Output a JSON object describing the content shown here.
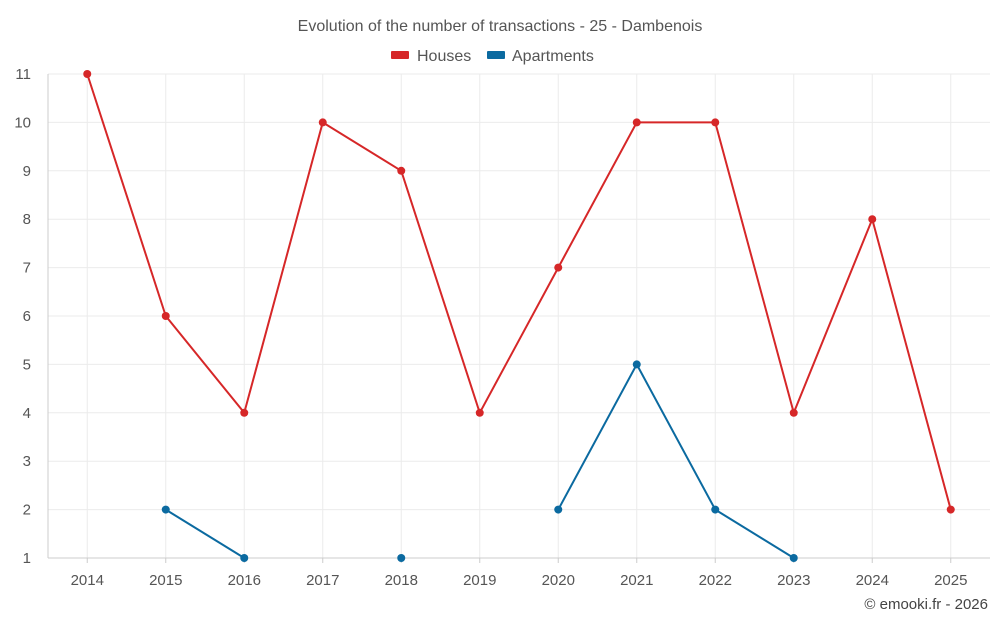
{
  "chart_data": {
    "type": "line",
    "title": "Evolution of the number of transactions - 25 - Dambenois",
    "xlabel": "",
    "ylabel": "",
    "categories": [
      "2014",
      "2015",
      "2016",
      "2017",
      "2018",
      "2019",
      "2020",
      "2021",
      "2022",
      "2023",
      "2024",
      "2025"
    ],
    "ylim": [
      1,
      11
    ],
    "yticks": [
      1,
      2,
      3,
      4,
      5,
      6,
      7,
      8,
      9,
      10,
      11
    ],
    "grid": true,
    "legend_position": "top-center",
    "series": [
      {
        "name": "Houses",
        "color": "#d62728",
        "values": [
          11,
          6,
          4,
          10,
          9,
          4,
          7,
          10,
          10,
          4,
          8,
          2
        ]
      },
      {
        "name": "Apartments",
        "color": "#0b6aa0",
        "values": [
          null,
          2,
          1,
          null,
          1,
          null,
          2,
          5,
          2,
          1,
          null,
          null
        ]
      }
    ]
  },
  "credit": "© emooki.fr - 2026"
}
